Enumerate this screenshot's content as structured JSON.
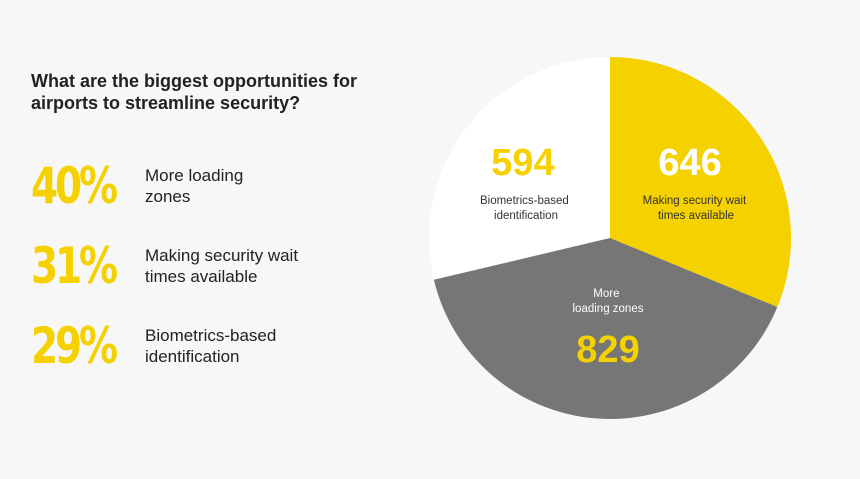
{
  "title": "What are the biggest opportunities for airports to streamline security?",
  "stats": [
    {
      "percent": "40%",
      "label": "More loading zones"
    },
    {
      "percent": "31%",
      "label": "Making security wait times available"
    },
    {
      "percent": "29%",
      "label": "Biometrics-based identification"
    }
  ],
  "colors": {
    "yellow": "#f6d100",
    "gray": "#767676",
    "white": "#ffffff",
    "text": "#222222"
  },
  "chart_data": {
    "type": "pie",
    "slices": [
      {
        "label": "Biometrics-based identification",
        "value": 594,
        "value_text": "594",
        "color": "#ffffff"
      },
      {
        "label": "Making security wait times available",
        "value": 646,
        "value_text": "646",
        "color": "#f6d100"
      },
      {
        "label": "More loading zones",
        "value": 829,
        "value_text": "829",
        "color": "#767676"
      }
    ]
  }
}
